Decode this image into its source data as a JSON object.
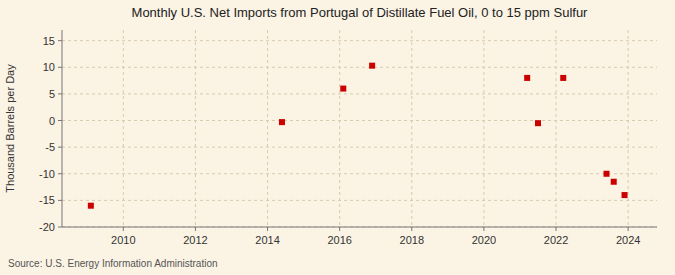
{
  "chart_data": {
    "type": "scatter",
    "title": "Monthly U.S. Net Imports from Portugal of Distillate Fuel Oil, 0 to 15 ppm Sulfur",
    "y_label": "Thousand Barrels per Day",
    "source": "Source: U.S. Energy Information Administration",
    "x": [
      2009.1,
      2014.4,
      2016.1,
      2016.9,
      2021.2,
      2021.5,
      2022.2,
      2023.4,
      2023.6,
      2023.9
    ],
    "values": [
      -16.0,
      -0.3,
      6.0,
      10.3,
      8.0,
      -0.5,
      8.0,
      -10.0,
      -11.5,
      -14.0
    ],
    "color": "#cc0000",
    "marker": "square",
    "xlim": [
      2008.3,
      2024.8
    ],
    "ylim": [
      -20,
      17
    ],
    "xticks": [
      2010,
      2012,
      2014,
      2016,
      2018,
      2020,
      2022,
      2024
    ],
    "yticks": [
      -20,
      -15,
      -10,
      -5,
      0,
      5,
      10,
      15
    ],
    "grid": true
  }
}
